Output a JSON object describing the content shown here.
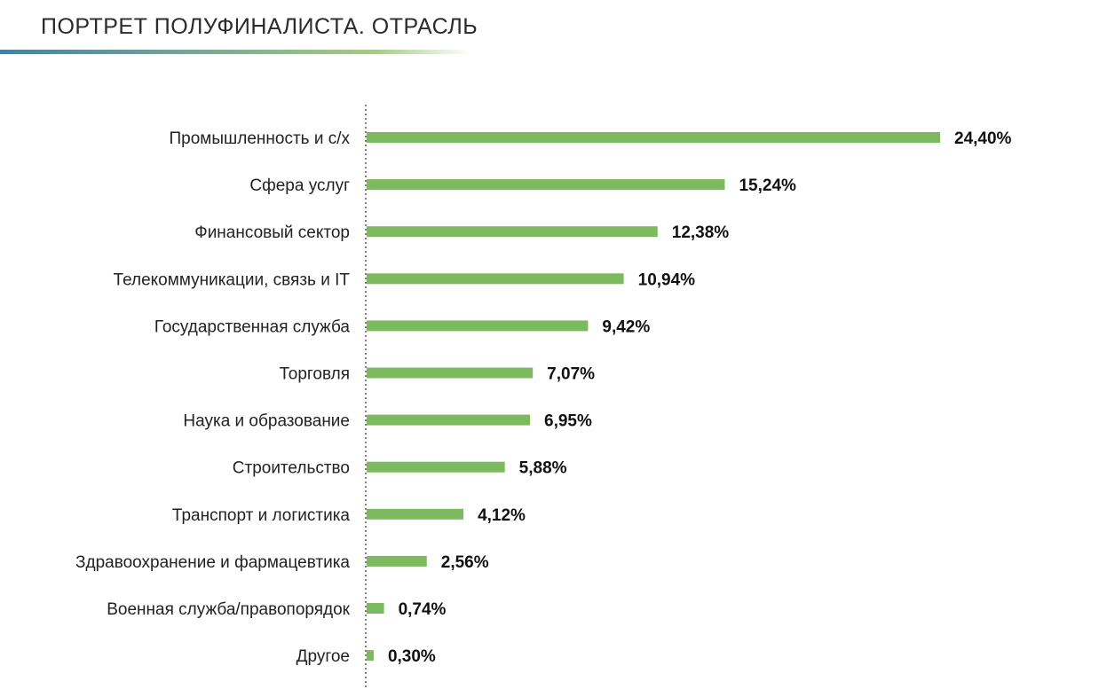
{
  "header": {
    "title": "ПОРТРЕТ ПОЛУФИНАЛИСТА. ОТРАСЛЬ",
    "underline_colors": [
      "#4a7fa0",
      "#a9c98a"
    ]
  },
  "chart_data": {
    "type": "bar",
    "orientation": "horizontal",
    "title": "",
    "xlabel": "",
    "ylabel": "",
    "xlim": [
      0,
      24.4
    ],
    "grid": false,
    "bar_color": "#7dba5f",
    "categories": [
      "Промышленность и с/х",
      "Сфера услуг",
      "Финансовый сектор",
      "Телекоммуникации, связь и IT",
      "Государственная служба",
      "Торговля",
      "Наука и образование",
      "Строительство",
      "Транспорт и логистика",
      "Здравоохранение и фармацевтика",
      "Военная служба/правопорядок",
      "Другое"
    ],
    "values": [
      24.4,
      15.24,
      12.38,
      10.94,
      9.42,
      7.07,
      6.95,
      5.88,
      4.12,
      2.56,
      0.74,
      0.3
    ],
    "value_labels": [
      "24,40%",
      "15,24%",
      "12,38%",
      "10,94%",
      "9,42%",
      "7,07%",
      "6,95%",
      "5,88%",
      "4,12%",
      "2,56%",
      "0,74%",
      "0,30%"
    ]
  }
}
